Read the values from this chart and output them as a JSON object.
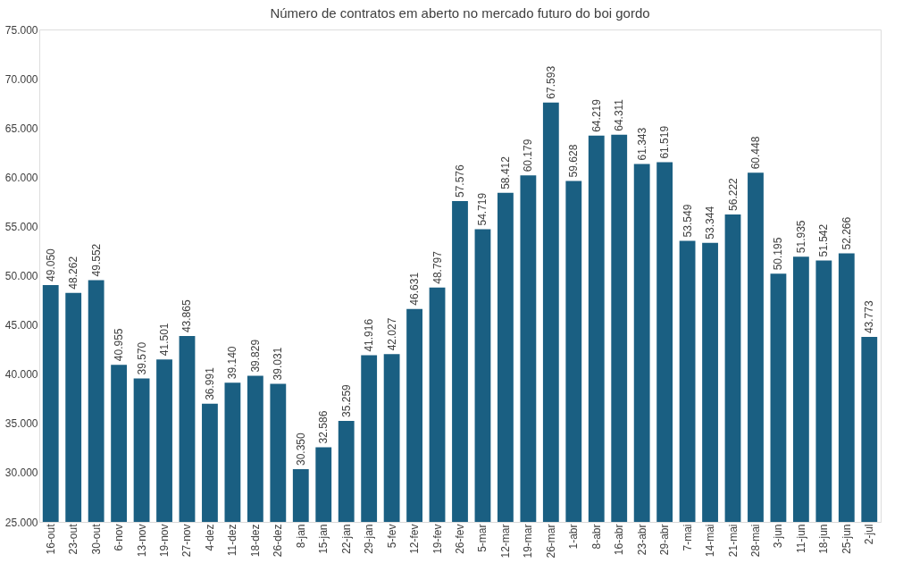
{
  "chart_data": {
    "type": "bar",
    "title": "Número de contratos em aberto no mercado futuro do boi gordo",
    "categories": [
      "16-out",
      "23-out",
      "30-out",
      "6-nov",
      "13-nov",
      "19-nov",
      "27-nov",
      "4-dez",
      "11-dez",
      "18-dez",
      "26-dez",
      "8-jan",
      "15-jan",
      "22-jan",
      "29-jan",
      "5-fev",
      "12-fev",
      "19-fev",
      "26-fev",
      "5-mar",
      "12-mar",
      "19-mar",
      "26-mar",
      "1-abr",
      "8-abr",
      "16-abr",
      "23-abr",
      "29-abr",
      "7-mai",
      "14-mai",
      "21-mai",
      "28-mai",
      "3-jun",
      "11-jun",
      "18-jun",
      "25-jun",
      "2-jul"
    ],
    "values": [
      49050,
      48262,
      49552,
      40955,
      39570,
      41501,
      43865,
      36991,
      39140,
      39829,
      39031,
      30350,
      32586,
      35259,
      41916,
      42027,
      46631,
      48797,
      57576,
      54719,
      58412,
      60179,
      67593,
      59628,
      64219,
      64311,
      61343,
      61519,
      53549,
      53344,
      56222,
      60448,
      50195,
      51935,
      51542,
      52266,
      43773
    ],
    "value_labels": [
      "49.050",
      "48.262",
      "49.552",
      "40.955",
      "39.570",
      "41.501",
      "43.865",
      "36.991",
      "39.140",
      "39.829",
      "39.031",
      "30.350",
      "32.586",
      "35.259",
      "41.916",
      "42.027",
      "46.631",
      "48.797",
      "57.576",
      "54.719",
      "58.412",
      "60.179",
      "67.593",
      "59.628",
      "64.219",
      "64.311",
      "61.343",
      "61.519",
      "53.549",
      "53.344",
      "56.222",
      "60.448",
      "50.195",
      "51.935",
      "51.542",
      "52.266",
      "43.773"
    ],
    "color": "#1a5f82",
    "ylim": [
      25000,
      75000
    ],
    "yticks": [
      {
        "value": 25000,
        "label": "25.000"
      },
      {
        "value": 30000,
        "label": "30.000"
      },
      {
        "value": 35000,
        "label": "35.000"
      },
      {
        "value": 40000,
        "label": "40.000"
      },
      {
        "value": 45000,
        "label": "45.000"
      },
      {
        "value": 50000,
        "label": "50.000"
      },
      {
        "value": 55000,
        "label": "55.000"
      },
      {
        "value": 60000,
        "label": "60.000"
      },
      {
        "value": 65000,
        "label": "65.000"
      },
      {
        "value": 70000,
        "label": "70.000"
      },
      {
        "value": 75000,
        "label": "75.000"
      }
    ],
    "grid": false
  }
}
